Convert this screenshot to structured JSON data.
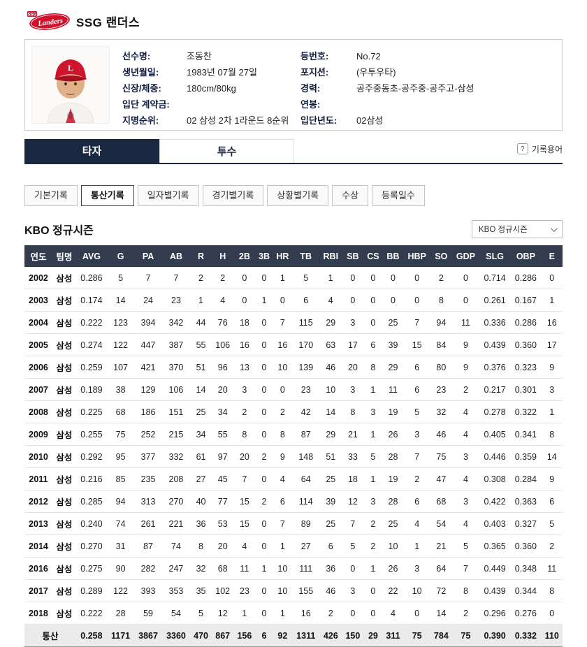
{
  "header": {
    "team_name": "SSG 랜더스",
    "logo_script": "Landers",
    "logo_small": "SSG"
  },
  "player": {
    "fields_left": [
      {
        "label": "선수명:",
        "value": "조동찬"
      },
      {
        "label": "생년월일:",
        "value": "1983년 07월 27일"
      },
      {
        "label": "신장/체중:",
        "value": "180cm/80kg"
      },
      {
        "label": "입단 계약금:",
        "value": ""
      },
      {
        "label": "지명순위:",
        "value": "02 삼성 2차 1라운드 8순위"
      }
    ],
    "fields_right": [
      {
        "label": "등번호:",
        "value": "No.72"
      },
      {
        "label": "포지션:",
        "value": "(우투우타)"
      },
      {
        "label": "경력:",
        "value": "공주중동초-공주중-공주고-삼성"
      },
      {
        "label": "연봉:",
        "value": ""
      },
      {
        "label": "입단년도:",
        "value": "02삼성"
      }
    ]
  },
  "tabs": {
    "batter": "타자",
    "pitcher": "투수",
    "glossary_icon": "?",
    "glossary": "기록용어"
  },
  "subtabs": [
    "기본기록",
    "통산기록",
    "일자별기록",
    "경기별기록",
    "상황별기록",
    "수상",
    "등록일수"
  ],
  "active_subtab": "통산기록",
  "section": {
    "title": "KBO 정규시즌",
    "dropdown_value": "KBO 정규시즌"
  },
  "table": {
    "headers": [
      "연도",
      "팀명",
      "AVG",
      "G",
      "PA",
      "AB",
      "R",
      "H",
      "2B",
      "3B",
      "HR",
      "TB",
      "RBI",
      "SB",
      "CS",
      "BB",
      "HBP",
      "SO",
      "GDP",
      "SLG",
      "OBP",
      "E"
    ],
    "rows": [
      [
        "2002",
        "삼성",
        "0.286",
        "5",
        "7",
        "7",
        "2",
        "2",
        "0",
        "0",
        "1",
        "5",
        "1",
        "0",
        "0",
        "0",
        "0",
        "2",
        "0",
        "0.714",
        "0.286",
        "0"
      ],
      [
        "2003",
        "삼성",
        "0.174",
        "14",
        "24",
        "23",
        "1",
        "4",
        "0",
        "1",
        "0",
        "6",
        "4",
        "0",
        "0",
        "0",
        "0",
        "8",
        "0",
        "0.261",
        "0.167",
        "1"
      ],
      [
        "2004",
        "삼성",
        "0.222",
        "123",
        "394",
        "342",
        "44",
        "76",
        "18",
        "0",
        "7",
        "115",
        "29",
        "3",
        "0",
        "25",
        "7",
        "94",
        "11",
        "0.336",
        "0.286",
        "16"
      ],
      [
        "2005",
        "삼성",
        "0.274",
        "122",
        "447",
        "387",
        "55",
        "106",
        "16",
        "0",
        "16",
        "170",
        "63",
        "17",
        "6",
        "39",
        "15",
        "84",
        "9",
        "0.439",
        "0.360",
        "17"
      ],
      [
        "2006",
        "삼성",
        "0.259",
        "107",
        "421",
        "370",
        "51",
        "96",
        "13",
        "0",
        "10",
        "139",
        "46",
        "20",
        "8",
        "29",
        "6",
        "80",
        "9",
        "0.376",
        "0.323",
        "9"
      ],
      [
        "2007",
        "삼성",
        "0.189",
        "38",
        "129",
        "106",
        "14",
        "20",
        "3",
        "0",
        "0",
        "23",
        "10",
        "3",
        "1",
        "11",
        "6",
        "23",
        "2",
        "0.217",
        "0.301",
        "3"
      ],
      [
        "2008",
        "삼성",
        "0.225",
        "68",
        "186",
        "151",
        "25",
        "34",
        "2",
        "0",
        "2",
        "42",
        "14",
        "8",
        "3",
        "19",
        "5",
        "32",
        "4",
        "0.278",
        "0.322",
        "1"
      ],
      [
        "2009",
        "삼성",
        "0.255",
        "75",
        "252",
        "215",
        "34",
        "55",
        "8",
        "0",
        "8",
        "87",
        "29",
        "21",
        "1",
        "26",
        "3",
        "46",
        "4",
        "0.405",
        "0.341",
        "8"
      ],
      [
        "2010",
        "삼성",
        "0.292",
        "95",
        "377",
        "332",
        "61",
        "97",
        "20",
        "2",
        "9",
        "148",
        "51",
        "33",
        "5",
        "28",
        "7",
        "75",
        "3",
        "0.446",
        "0.359",
        "14"
      ],
      [
        "2011",
        "삼성",
        "0.216",
        "85",
        "235",
        "208",
        "27",
        "45",
        "7",
        "0",
        "4",
        "64",
        "25",
        "18",
        "1",
        "19",
        "2",
        "47",
        "4",
        "0.308",
        "0.284",
        "9"
      ],
      [
        "2012",
        "삼성",
        "0.285",
        "94",
        "313",
        "270",
        "40",
        "77",
        "15",
        "2",
        "6",
        "114",
        "39",
        "12",
        "3",
        "28",
        "6",
        "68",
        "3",
        "0.422",
        "0.363",
        "6"
      ],
      [
        "2013",
        "삼성",
        "0.240",
        "74",
        "261",
        "221",
        "36",
        "53",
        "15",
        "0",
        "7",
        "89",
        "25",
        "7",
        "2",
        "25",
        "4",
        "54",
        "4",
        "0.403",
        "0.327",
        "5"
      ],
      [
        "2014",
        "삼성",
        "0.270",
        "31",
        "87",
        "74",
        "8",
        "20",
        "4",
        "0",
        "1",
        "27",
        "6",
        "5",
        "2",
        "10",
        "1",
        "21",
        "5",
        "0.365",
        "0.360",
        "2"
      ],
      [
        "2016",
        "삼성",
        "0.275",
        "90",
        "282",
        "247",
        "32",
        "68",
        "11",
        "1",
        "10",
        "111",
        "36",
        "0",
        "1",
        "26",
        "3",
        "64",
        "7",
        "0.449",
        "0.348",
        "11"
      ],
      [
        "2017",
        "삼성",
        "0.289",
        "122",
        "393",
        "353",
        "35",
        "102",
        "23",
        "0",
        "10",
        "155",
        "46",
        "3",
        "0",
        "22",
        "10",
        "72",
        "8",
        "0.439",
        "0.344",
        "8"
      ],
      [
        "2018",
        "삼성",
        "0.222",
        "28",
        "59",
        "54",
        "5",
        "12",
        "1",
        "0",
        "1",
        "16",
        "2",
        "0",
        "0",
        "4",
        "0",
        "14",
        "2",
        "0.296",
        "0.276",
        "0"
      ]
    ],
    "total_row": [
      "통산",
      "0.258",
      "1171",
      "3867",
      "3360",
      "470",
      "867",
      "156",
      "6",
      "92",
      "1311",
      "426",
      "150",
      "29",
      "311",
      "75",
      "784",
      "75",
      "0.390",
      "0.332",
      "110"
    ]
  },
  "colors": {
    "navy": "#1a2740",
    "table_header": "#323c4e",
    "brand_red": "#d0122c"
  }
}
